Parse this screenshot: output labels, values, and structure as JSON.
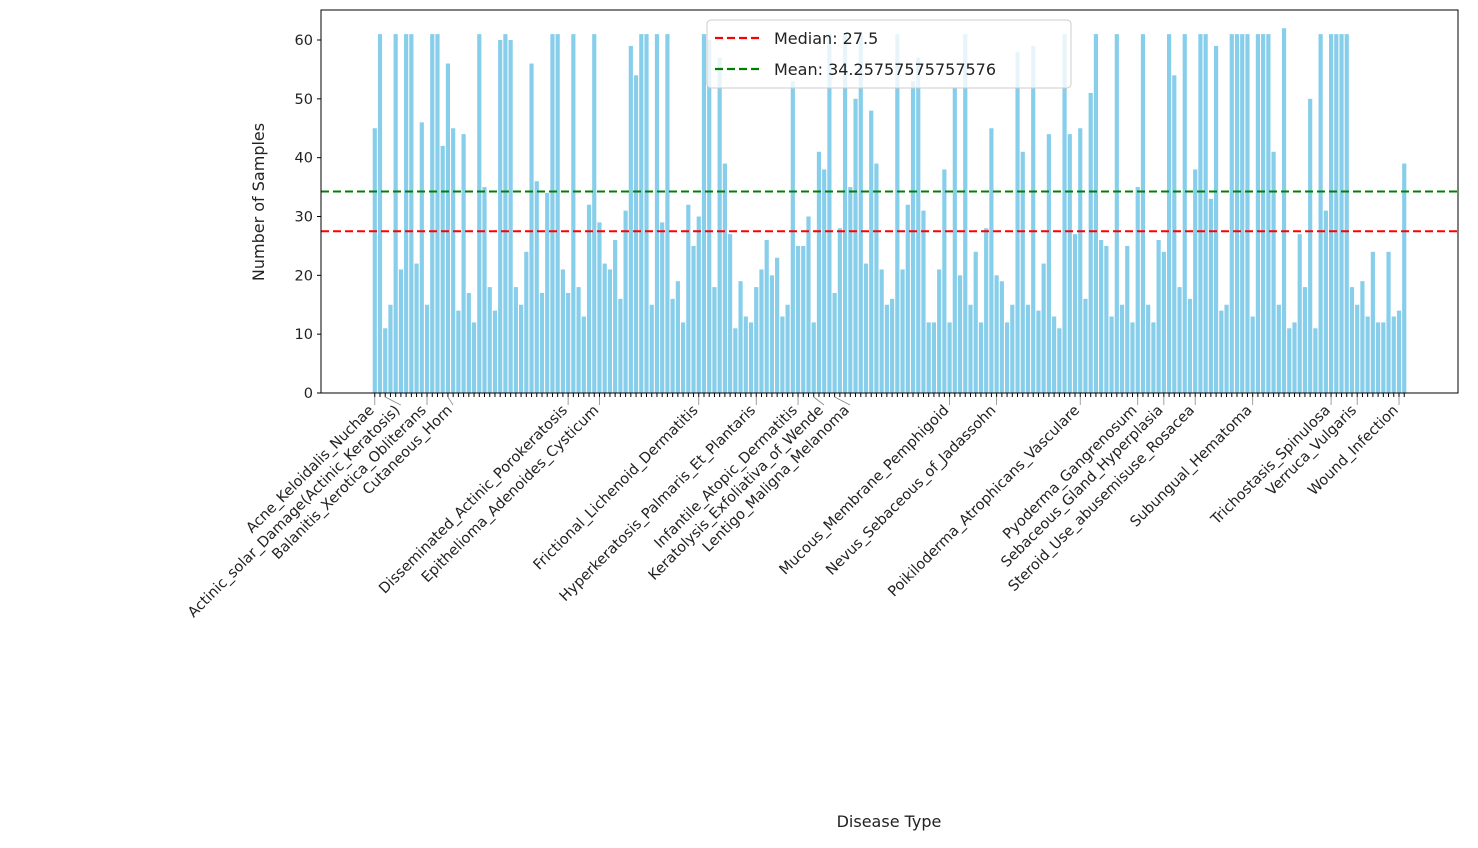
{
  "chart_data": {
    "type": "bar",
    "xlabel": "Disease Type",
    "ylabel": "Number of Samples",
    "ylim": [
      0,
      65.1
    ],
    "yticks": [
      0,
      10,
      20,
      30,
      40,
      50,
      60
    ],
    "grid": false,
    "bar_color": "#87CEEB",
    "values": [
      45,
      61,
      11,
      15,
      61,
      21,
      61,
      61,
      22,
      46,
      15,
      61,
      61,
      42,
      56,
      45,
      14,
      44,
      17,
      12,
      61,
      35,
      18,
      14,
      60,
      61,
      60,
      18,
      15,
      24,
      56,
      36,
      17,
      34,
      61,
      61,
      21,
      17,
      61,
      18,
      13,
      32,
      61,
      29,
      22,
      21,
      26,
      16,
      31,
      59,
      54,
      61,
      61,
      15,
      61,
      29,
      61,
      16,
      19,
      12,
      32,
      25,
      30,
      61,
      60,
      18,
      57,
      39,
      27,
      11,
      19,
      13,
      12,
      18,
      21,
      26,
      20,
      23,
      13,
      15,
      53,
      25,
      25,
      30,
      12,
      41,
      38,
      61,
      17,
      28,
      61,
      35,
      50,
      61,
      22,
      48,
      39,
      21,
      15,
      16,
      61,
      21,
      32,
      53,
      57,
      31,
      12,
      12,
      21,
      38,
      12,
      52,
      20,
      61,
      15,
      24,
      12,
      28,
      45,
      20,
      19,
      12,
      15,
      58,
      41,
      15,
      59,
      14,
      22,
      44,
      13,
      11,
      61,
      44,
      27,
      45,
      16,
      51,
      61,
      26,
      25,
      13,
      61,
      15,
      25,
      12,
      35,
      61,
      15,
      12,
      26,
      24,
      61,
      54,
      18,
      61,
      16,
      38,
      61,
      61,
      33,
      59,
      14,
      15,
      61,
      61,
      61,
      61,
      13,
      61,
      61,
      61,
      41,
      15,
      62,
      11,
      12,
      27,
      18,
      50,
      11,
      61,
      31,
      61,
      61,
      61,
      61,
      18,
      15,
      19,
      13,
      24,
      12,
      12,
      24,
      13,
      14,
      39
    ],
    "visible_category_labels": [
      {
        "index": 0,
        "label": "Acne_Keloidalis_Nuchae"
      },
      {
        "index": 2,
        "label": "Actinic_solar_Damage(Actinic_Keratosis)"
      },
      {
        "index": 10,
        "label": "Balanitis_Xerotica_Obliterans"
      },
      {
        "index": 14,
        "label": "Cutaneous_Horn"
      },
      {
        "index": 37,
        "label": "Disseminated_Actinic_Porokeratosis"
      },
      {
        "index": 43,
        "label": "Epithelioma_Adenoides_Cysticum"
      },
      {
        "index": 62,
        "label": "Frictional_Lichenoid_Dermatitis"
      },
      {
        "index": 73,
        "label": "Hyperkeratosis_Palmaris_Et_Plantaris"
      },
      {
        "index": 81,
        "label": "Infantile_Atopic_Dermatitis"
      },
      {
        "index": 84,
        "label": "Keratolysis_Exfoliativa_of_Wende"
      },
      {
        "index": 88,
        "label": "Lentigo_Maligna_Melanoma"
      },
      {
        "index": 110,
        "label": "Mucous_Membrane_Pemphigoid"
      },
      {
        "index": 119,
        "label": "Nevus_Sebaceous_of_Jadassohn"
      },
      {
        "index": 135,
        "label": "Poikiloderma_Atrophicans_Vasculare"
      },
      {
        "index": 146,
        "label": "Pyoderma_Gangrenosum"
      },
      {
        "index": 151,
        "label": "Sebaceous_Gland_Hyperplasia"
      },
      {
        "index": 157,
        "label": "Steroid_Use_abusemisuse_Rosacea"
      },
      {
        "index": 168,
        "label": "Subungual_Hematoma"
      },
      {
        "index": 183,
        "label": "Trichostasis_Spinulosa"
      },
      {
        "index": 188,
        "label": "Verruca_Vulgaris"
      },
      {
        "index": 196,
        "label": "Wound_Infection"
      }
    ],
    "reference_lines": [
      {
        "name": "Median: 27.5",
        "value": 27.5,
        "color": "#ff0000",
        "style": "dashed"
      },
      {
        "name": "Mean: 34.25757575757576",
        "value": 34.25757575757576,
        "color": "#008000",
        "style": "dashed"
      }
    ],
    "legend_position": "top-center"
  }
}
